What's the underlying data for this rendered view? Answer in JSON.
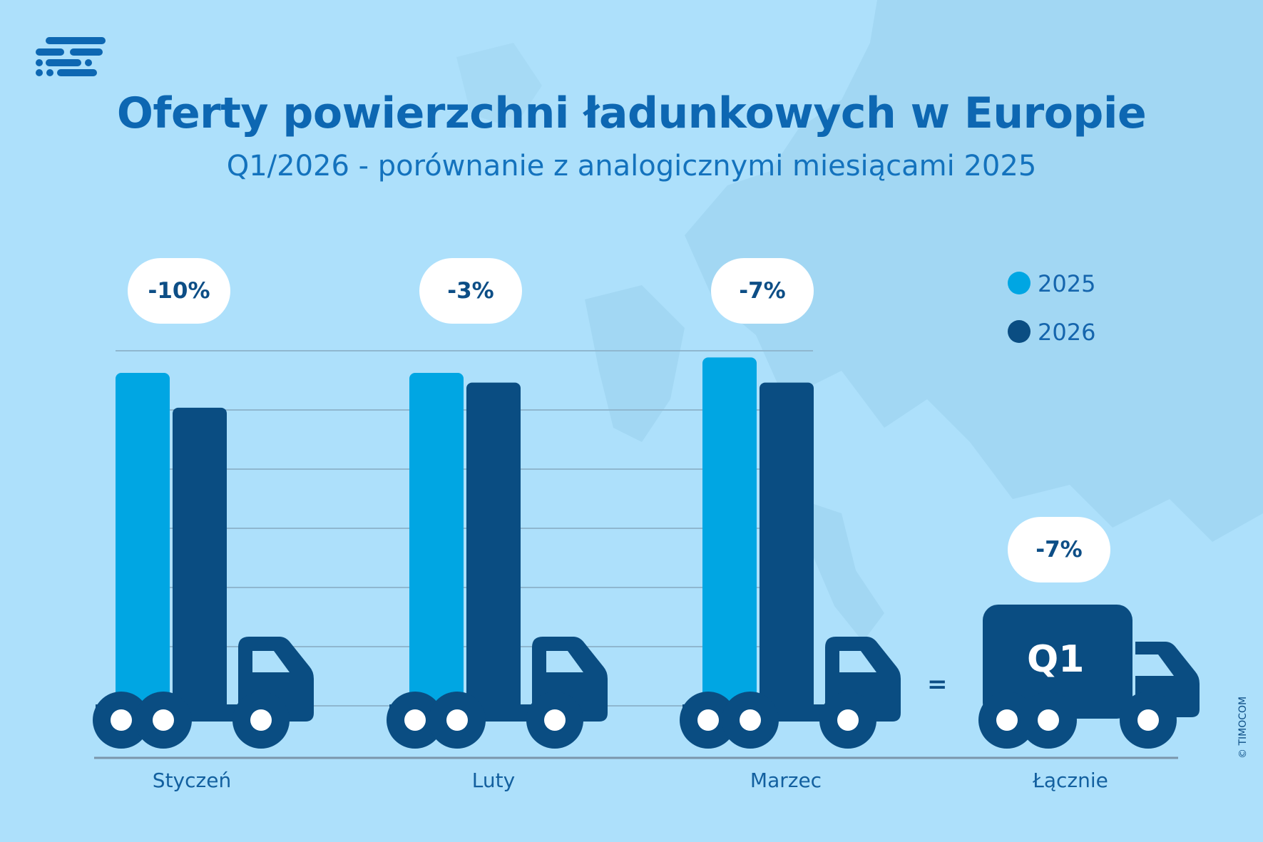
{
  "header": {
    "title": "Oferty powierzchni ładunkowych w Europie",
    "subtitle": "Q1/2026 - porównanie z analogicznymi miesiącami 2025"
  },
  "legend": [
    {
      "label": "2025",
      "color": "#00a6e3"
    },
    {
      "label": "2026",
      "color": "#0a4d82"
    }
  ],
  "colors": {
    "background": "#ade0fb",
    "bar_2025": "#00a6e3",
    "bar_2026": "#0a4d82",
    "truck": "#0a4d82",
    "title": "#0d67b2"
  },
  "chart_data": {
    "type": "bar",
    "categories": [
      "Styczeń",
      "Luty",
      "Marzec"
    ],
    "series": [
      {
        "name": "2025",
        "values": [
          88,
          88,
          92
        ]
      },
      {
        "name": "2026",
        "values": [
          79,
          85.5,
          85.5
        ]
      }
    ],
    "changes": [
      "-10%",
      "-3%",
      "-7%"
    ],
    "total": {
      "label": "Łącznie",
      "change": "-7%",
      "truck_label": "Q1",
      "operator": "="
    },
    "ylim": [
      0,
      100
    ],
    "grid": true,
    "legend_position": "top-right"
  },
  "footer": {
    "copyright": "© TIMOCOM"
  }
}
